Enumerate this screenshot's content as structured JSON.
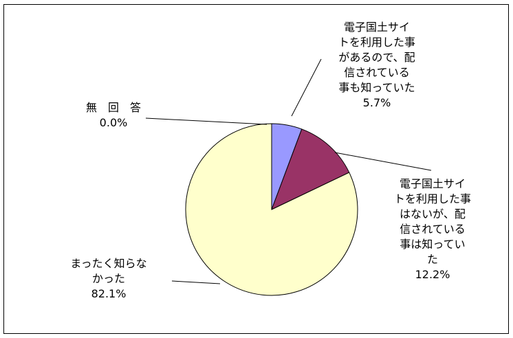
{
  "chart_data": {
    "type": "pie",
    "title": "",
    "slices": [
      {
        "label_lines": [
          "電子国土サイ",
          "トを利用した事",
          "があるので、配",
          "信されている",
          "事も知っていた"
        ],
        "value": 5.7,
        "value_text": "5.7%",
        "color": "#9999ff"
      },
      {
        "label_lines": [
          "電子国土サイ",
          "トを利用した事",
          "はないが、配",
          "信されている",
          "事は知ってい",
          "た"
        ],
        "value": 12.2,
        "value_text": "12.2%",
        "color": "#993366"
      },
      {
        "label_lines": [
          "まったく知らな",
          "かった"
        ],
        "value": 82.1,
        "value_text": "82.1%",
        "color": "#ffffcc"
      },
      {
        "label_lines": [
          "無　回　答"
        ],
        "value": 0.0,
        "value_text": "0.0%",
        "color": "#ccffff"
      }
    ]
  }
}
